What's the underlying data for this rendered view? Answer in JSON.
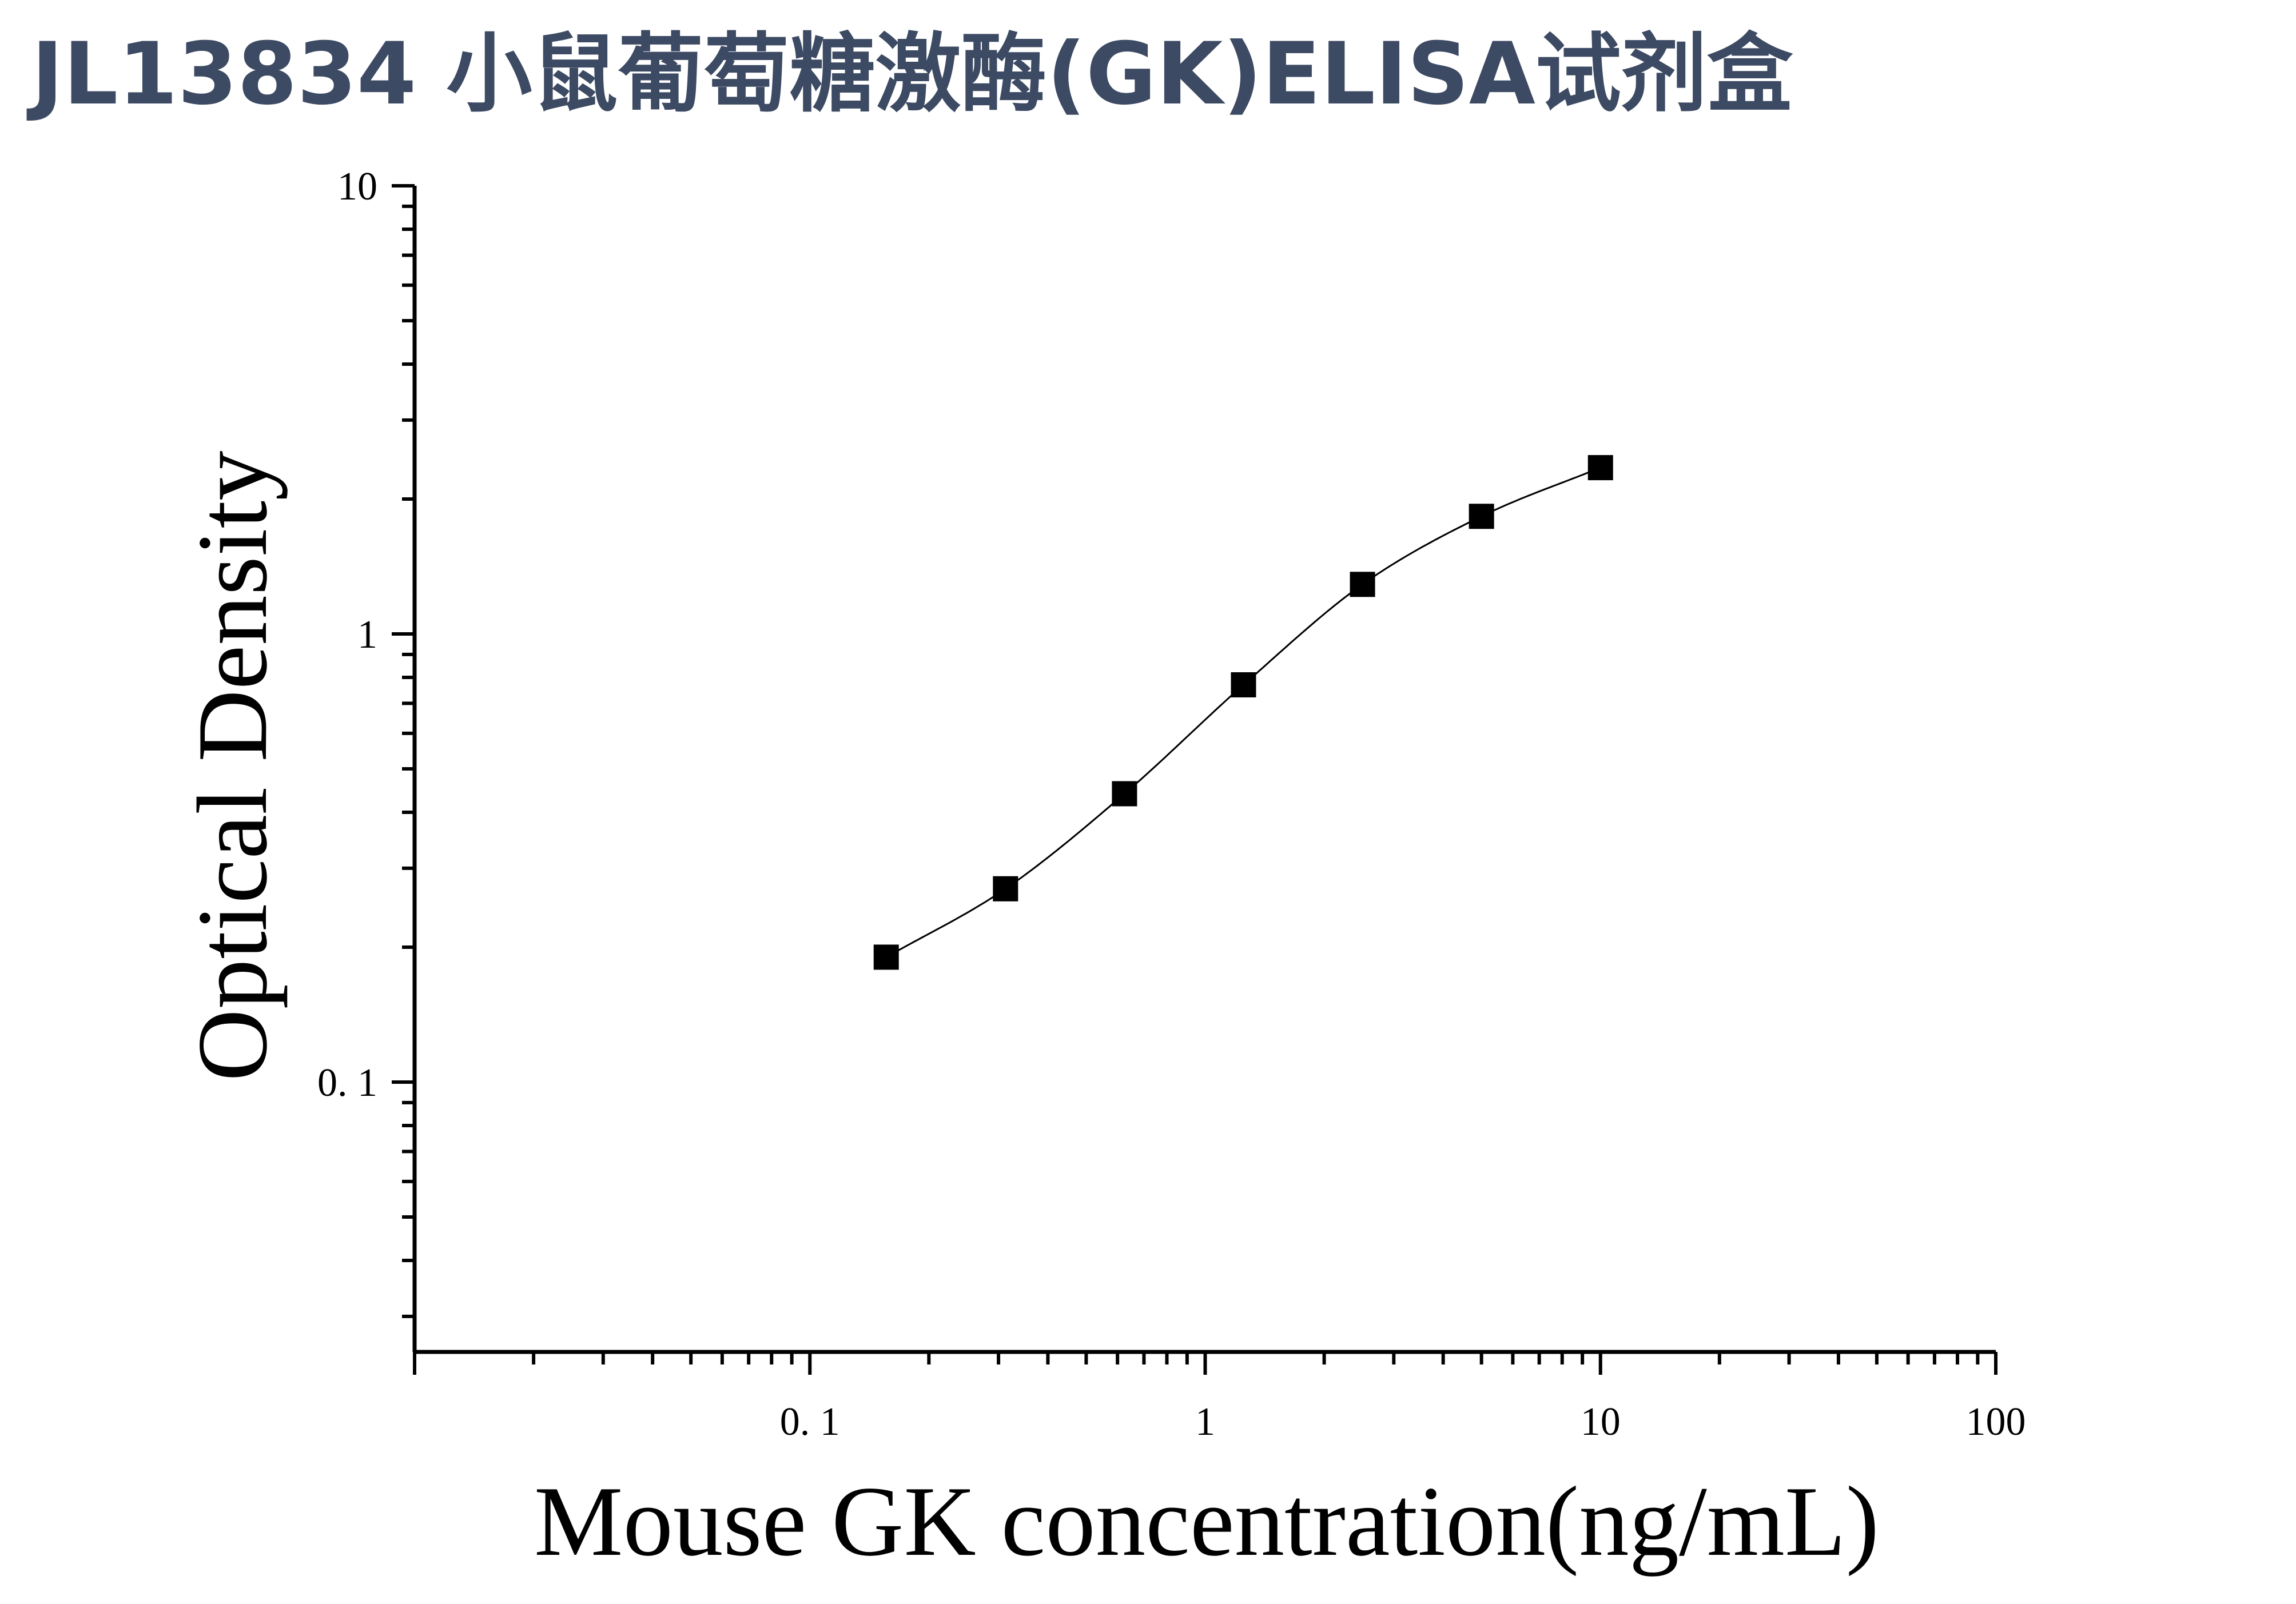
{
  "page": {
    "title": "JL13834 小鼠葡萄糖激酶(GK)ELISA试剂盒"
  },
  "chart_data": {
    "type": "scatter",
    "title": "JL13834 小鼠葡萄糖激酶(GK)ELISA试剂盒",
    "xlabel": "Mouse GK concentration(ng/mL)",
    "ylabel": "Optical Density",
    "x_scale": "log",
    "y_scale": "log",
    "xlim": [
      0.01,
      100
    ],
    "ylim": [
      0.025,
      10
    ],
    "x_ticks": [
      {
        "value": 0.1,
        "label": "0. 1"
      },
      {
        "value": 1,
        "label": "1"
      },
      {
        "value": 10,
        "label": "10"
      },
      {
        "value": 100,
        "label": "100"
      }
    ],
    "y_ticks": [
      {
        "value": 0.1,
        "label": "0. 1"
      },
      {
        "value": 1,
        "label": "1"
      },
      {
        "value": 10,
        "label": "10"
      }
    ],
    "grid": false,
    "legend": "none",
    "marker": "square",
    "fit_curve": true,
    "color": "#000000",
    "series": [
      {
        "x": [
          0.156,
          0.3125,
          0.625,
          1.25,
          2.5,
          5,
          10
        ],
        "y": [
          0.19,
          0.27,
          0.44,
          0.77,
          1.29,
          1.83,
          2.35
        ]
      }
    ]
  }
}
